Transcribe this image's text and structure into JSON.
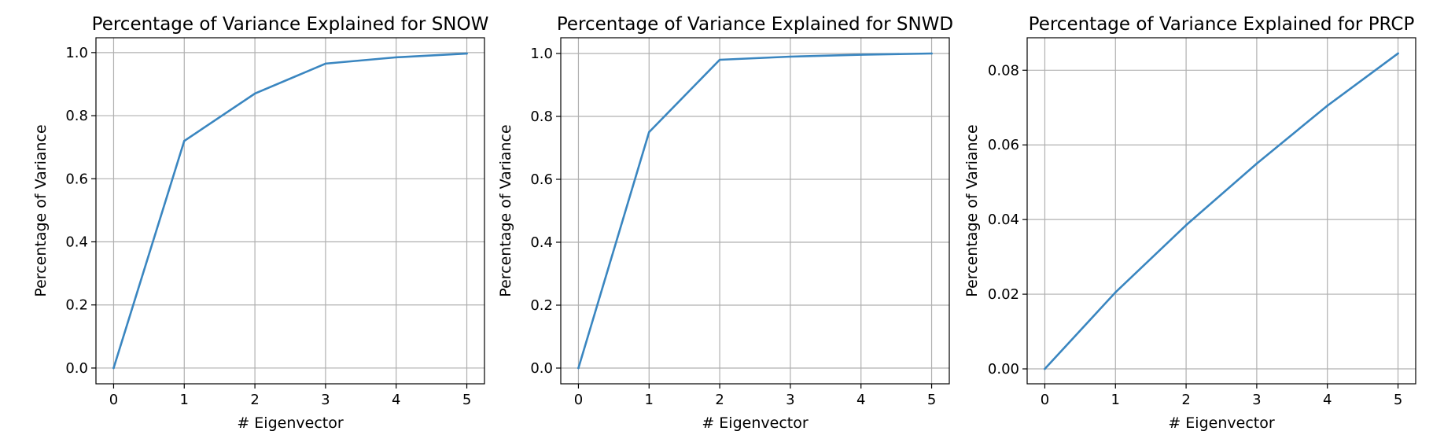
{
  "colors": {
    "series": "#3a86c0",
    "grid": "#b0b0b0",
    "frame": "#000000"
  },
  "chart_data": [
    {
      "type": "line",
      "title": "Percentage of Variance Explained for SNOW",
      "xlabel": "# Eigenvector",
      "ylabel": "Percentage of Variance",
      "x": [
        0,
        1,
        2,
        3,
        4,
        5
      ],
      "series": [
        {
          "values": [
            0.0,
            0.72,
            0.87,
            0.965,
            0.985,
            0.997
          ]
        }
      ],
      "xticks": [
        0,
        1,
        2,
        3,
        4,
        5
      ],
      "xtick_labels": [
        "0",
        "1",
        "2",
        "3",
        "4",
        "5"
      ],
      "yticks": [
        0.0,
        0.2,
        0.4,
        0.6,
        0.8,
        1.0
      ],
      "ytick_labels": [
        "0.0",
        "0.2",
        "0.4",
        "0.6",
        "0.8",
        "1.0"
      ],
      "xlim": [
        -0.25,
        5.25
      ],
      "ylim": [
        -0.05,
        1.047
      ],
      "grid": true
    },
    {
      "type": "line",
      "title": "Percentage of Variance Explained for SNWD",
      "xlabel": "# Eigenvector",
      "ylabel": "Percentage of Variance",
      "x": [
        0,
        1,
        2,
        3,
        4,
        5
      ],
      "series": [
        {
          "values": [
            0.0,
            0.75,
            0.98,
            0.99,
            0.996,
            1.0
          ]
        }
      ],
      "xticks": [
        0,
        1,
        2,
        3,
        4,
        5
      ],
      "xtick_labels": [
        "0",
        "1",
        "2",
        "3",
        "4",
        "5"
      ],
      "yticks": [
        0.0,
        0.2,
        0.4,
        0.6,
        0.8,
        1.0
      ],
      "ytick_labels": [
        "0.0",
        "0.2",
        "0.4",
        "0.6",
        "0.8",
        "1.0"
      ],
      "xlim": [
        -0.25,
        5.25
      ],
      "ylim": [
        -0.05,
        1.05
      ],
      "grid": true
    },
    {
      "type": "line",
      "title": "Percentage of Variance Explained for PRCP",
      "xlabel": "# Eigenvector",
      "ylabel": "Percentage of Variance",
      "x": [
        0,
        1,
        2,
        3,
        4,
        5
      ],
      "series": [
        {
          "values": [
            0.0,
            0.0205,
            0.0385,
            0.055,
            0.0705,
            0.0845
          ]
        }
      ],
      "xticks": [
        0,
        1,
        2,
        3,
        4,
        5
      ],
      "xtick_labels": [
        "0",
        "1",
        "2",
        "3",
        "4",
        "5"
      ],
      "yticks": [
        0.0,
        0.02,
        0.04,
        0.06,
        0.08
      ],
      "ytick_labels": [
        "0.00",
        "0.02",
        "0.04",
        "0.06",
        "0.08"
      ],
      "xlim": [
        -0.25,
        5.25
      ],
      "ylim": [
        -0.004,
        0.0887
      ],
      "grid": true
    }
  ]
}
